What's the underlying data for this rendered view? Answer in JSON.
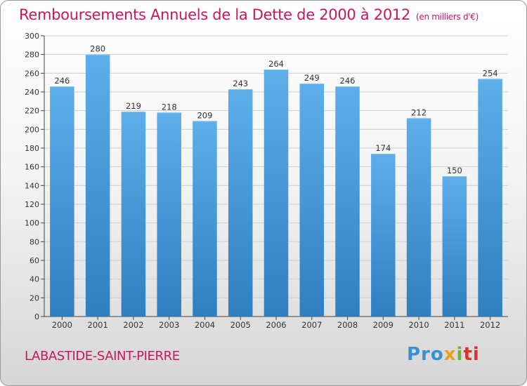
{
  "chart_data": {
    "type": "bar",
    "title": "Remboursements Annuels de la Dette de 2000 à 2012",
    "unit_note": "(en milliers d'€)",
    "categories": [
      "2000",
      "2001",
      "2002",
      "2003",
      "2004",
      "2005",
      "2006",
      "2007",
      "2008",
      "2009",
      "2010",
      "2011",
      "2012"
    ],
    "values": [
      246,
      280,
      219,
      218,
      209,
      243,
      264,
      249,
      246,
      174,
      212,
      150,
      254
    ],
    "ylim": [
      0,
      300
    ],
    "ytick_step": 20,
    "grid": true,
    "bar_color_top": "#5eaeea",
    "bar_color_bottom": "#2f7fc1"
  },
  "footer": {
    "location": "LABASTIDE-SAINT-PIERRE",
    "brand": "Proxiti"
  },
  "colors": {
    "title": "#c8175e",
    "grid": "#d0d0d0"
  }
}
